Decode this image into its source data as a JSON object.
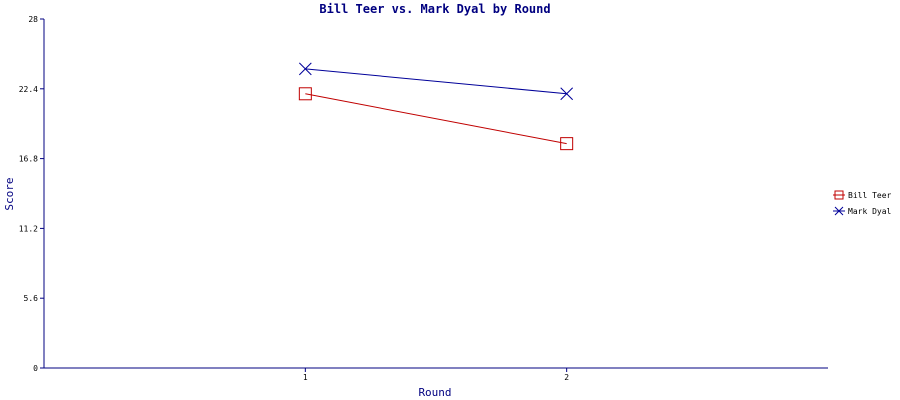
{
  "chart_data": {
    "type": "line",
    "title": "Bill Teer vs. Mark Dyal by Round",
    "xlabel": "Round",
    "ylabel": "Score",
    "x": [
      1,
      2
    ],
    "xlim": [
      0,
      3
    ],
    "ylim": [
      0,
      28
    ],
    "yticks": [
      "0",
      "5.6",
      "11.2",
      "16.8",
      "22.4",
      "28"
    ],
    "xticks": [
      "1",
      "2"
    ],
    "grid": false,
    "legend_position": "right",
    "axis_color": "#000080",
    "series": [
      {
        "name": "Bill Teer",
        "values": [
          22,
          18
        ],
        "color": "#c00000",
        "marker": "square"
      },
      {
        "name": "Mark Dyal",
        "values": [
          24,
          22
        ],
        "color": "#000099",
        "marker": "x"
      }
    ]
  }
}
